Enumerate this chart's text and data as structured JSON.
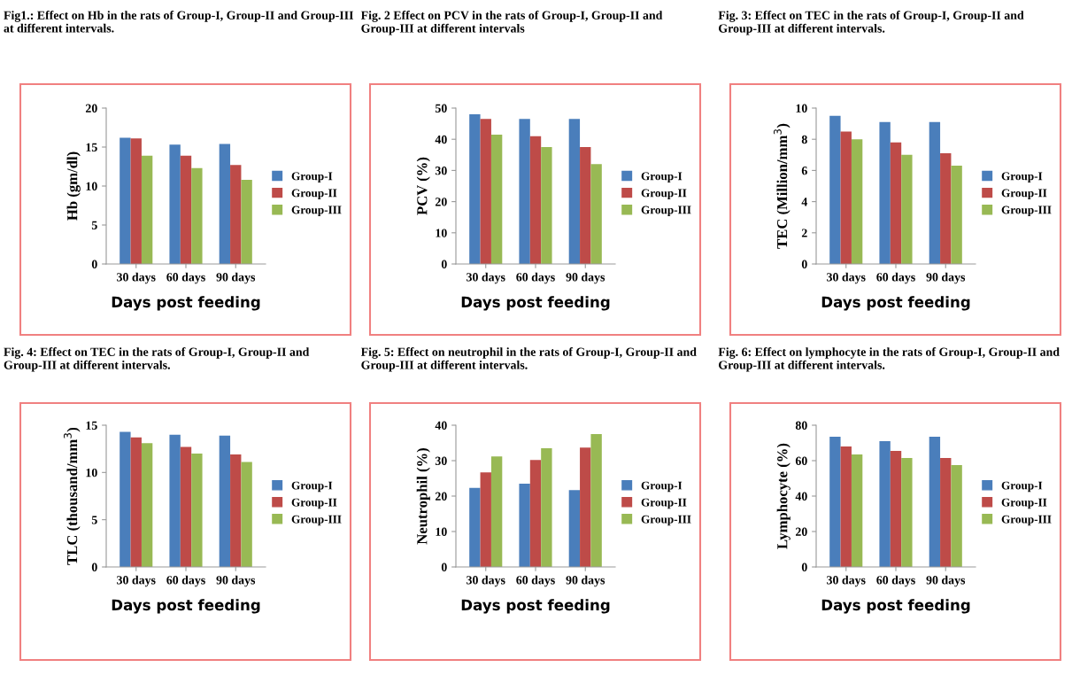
{
  "chart_data": [
    {
      "type": "bar",
      "title": "Fig1.: Effect on Hb in the rats of Group-I, Group-II and Group-III at different intervals.",
      "xlabel": "Days post feeding",
      "ylabel": "Hb (gm/dl)",
      "categories": [
        "30 days",
        "60 days",
        "90 days"
      ],
      "ylim": [
        0,
        20
      ],
      "yticks": [
        0,
        5,
        10,
        15,
        20
      ],
      "legend": "right",
      "grid": false,
      "series": [
        {
          "name": "Group-I",
          "color": "#4a7ebb",
          "values": [
            16.2,
            15.3,
            15.4
          ]
        },
        {
          "name": "Group-II",
          "color": "#be4b48",
          "values": [
            16.1,
            13.9,
            12.7
          ]
        },
        {
          "name": "Group-III",
          "color": "#98b954",
          "values": [
            13.9,
            12.3,
            10.8
          ]
        }
      ]
    },
    {
      "type": "bar",
      "title": "Fig. 2 Effect on PCV in the rats of Group-I, Group-II and Group-III at different intervals",
      "xlabel": "Days post feeding",
      "ylabel": "PCV (%)",
      "categories": [
        "30 days",
        "60 days",
        "90 days"
      ],
      "ylim": [
        0,
        50
      ],
      "yticks": [
        0,
        10,
        20,
        30,
        40,
        50
      ],
      "legend": "right",
      "grid": false,
      "series": [
        {
          "name": "Group-I",
          "color": "#4a7ebb",
          "values": [
            48,
            46.5,
            46.5
          ]
        },
        {
          "name": "Group-II",
          "color": "#be4b48",
          "values": [
            46.5,
            41,
            37.5
          ]
        },
        {
          "name": "Group-III",
          "color": "#98b954",
          "values": [
            41.5,
            37.5,
            32
          ]
        }
      ]
    },
    {
      "type": "bar",
      "title": "Fig. 3: Effect on TEC in the rats of Group-I, Group-II and Group-III at different intervals.",
      "xlabel": "Days post feeding",
      "ylabel": "TEC (Million/mm$^{3}$)",
      "categories": [
        "30 days",
        "60 days",
        "90 days"
      ],
      "ylim": [
        0,
        10
      ],
      "yticks": [
        0,
        2,
        4,
        6,
        8,
        10
      ],
      "legend": "right",
      "grid": false,
      "series": [
        {
          "name": "Group-I",
          "color": "#4a7ebb",
          "values": [
            9.5,
            9.1,
            9.1
          ]
        },
        {
          "name": "Group-II",
          "color": "#be4b48",
          "values": [
            8.5,
            7.8,
            7.1
          ]
        },
        {
          "name": "Group-III",
          "color": "#98b954",
          "values": [
            8.0,
            7.0,
            6.3
          ]
        }
      ]
    },
    {
      "type": "bar",
      "title": "Fig. 4: Effect on TEC in the rats of Group-I, Group-II and Group-III at different intervals.",
      "xlabel": "Days post feeding",
      "ylabel": "TLC (thousand/mm$^{3}$)",
      "categories": [
        "30 days",
        "60 days",
        "90 days"
      ],
      "ylim": [
        0,
        15
      ],
      "yticks": [
        0,
        5,
        10,
        15
      ],
      "legend": "right",
      "grid": false,
      "series": [
        {
          "name": "Group-I",
          "color": "#4a7ebb",
          "values": [
            14.3,
            14.0,
            13.9
          ]
        },
        {
          "name": "Group-II",
          "color": "#be4b48",
          "values": [
            13.7,
            12.7,
            11.9
          ]
        },
        {
          "name": "Group-III",
          "color": "#98b954",
          "values": [
            13.1,
            12.0,
            11.1
          ]
        }
      ]
    },
    {
      "type": "bar",
      "title": "Fig. 5: Effect on neutrophil in the rats of Group-I, Group-II and Group-III at different intervals.",
      "xlabel": "Days post feeding",
      "ylabel": "Neutrophil (%)",
      "categories": [
        "30 days",
        "60 days",
        "90 days"
      ],
      "ylim": [
        0,
        40
      ],
      "yticks": [
        0,
        10,
        20,
        30,
        40
      ],
      "legend": "right",
      "grid": false,
      "series": [
        {
          "name": "Group-I",
          "color": "#4a7ebb",
          "values": [
            22.3,
            23.5,
            21.7
          ]
        },
        {
          "name": "Group-II",
          "color": "#be4b48",
          "values": [
            26.7,
            30.2,
            33.7
          ]
        },
        {
          "name": "Group-III",
          "color": "#98b954",
          "values": [
            31.2,
            33.5,
            37.5
          ]
        }
      ]
    },
    {
      "type": "bar",
      "title": "Fig. 6: Effect on lymphocyte in the rats of Group-I, Group-II and Group-III at different intervals.",
      "xlabel": "Days post feeding",
      "ylabel": "Lymphocyte (%)",
      "categories": [
        "30 days",
        "60 days",
        "90 days"
      ],
      "ylim": [
        0,
        80
      ],
      "yticks": [
        0,
        20,
        40,
        60,
        80
      ],
      "legend": "right",
      "grid": false,
      "series": [
        {
          "name": "Group-I",
          "color": "#4a7ebb",
          "values": [
            73.5,
            71,
            73.5
          ]
        },
        {
          "name": "Group-II",
          "color": "#be4b48",
          "values": [
            68,
            65.5,
            61.5
          ]
        },
        {
          "name": "Group-III",
          "color": "#98b954",
          "values": [
            63.5,
            61.5,
            57.5
          ]
        }
      ]
    }
  ]
}
